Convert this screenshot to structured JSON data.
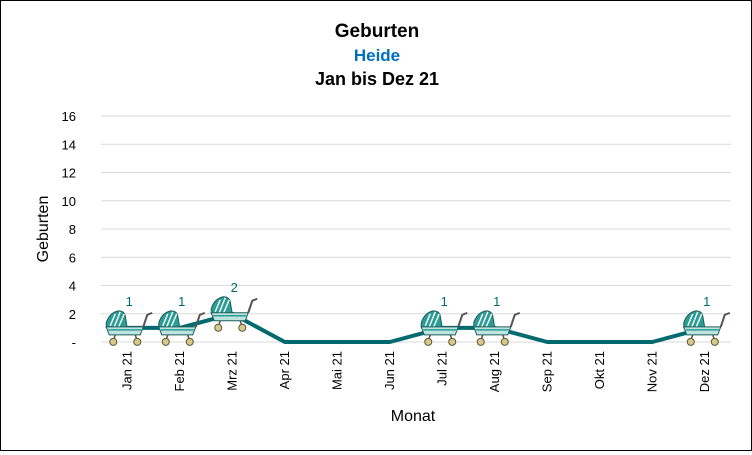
{
  "chart_data": {
    "type": "line",
    "title": "Geburten",
    "subtitle": "Heide",
    "subtitle2": "Jan bis Dez 21",
    "xlabel": "Monat",
    "ylabel": "Geburten",
    "categories": [
      "Jan 21",
      "Feb 21",
      "Mrz 21",
      "Apr 21",
      "Mai 21",
      "Jun 21",
      "Jul 21",
      "Aug 21",
      "Sep 21",
      "Okt 21",
      "Nov 21",
      "Dez 21"
    ],
    "values": [
      1,
      1,
      2,
      0,
      0,
      0,
      1,
      1,
      0,
      0,
      0,
      1
    ],
    "ylim": [
      0,
      16
    ],
    "yticks": [
      "-",
      "2",
      "4",
      "6",
      "8",
      "10",
      "12",
      "14",
      "16"
    ],
    "data_labels": [
      "1",
      "1",
      "2",
      "",
      "",
      "",
      "1",
      "1",
      "",
      "",
      "",
      "1"
    ],
    "marker_icon": "baby-carriage-icon",
    "grid": true,
    "colors": {
      "line": "#006a6e",
      "subtitle": "#0070c0",
      "label": "#006a6e",
      "grid": "#d9d9d9"
    }
  }
}
